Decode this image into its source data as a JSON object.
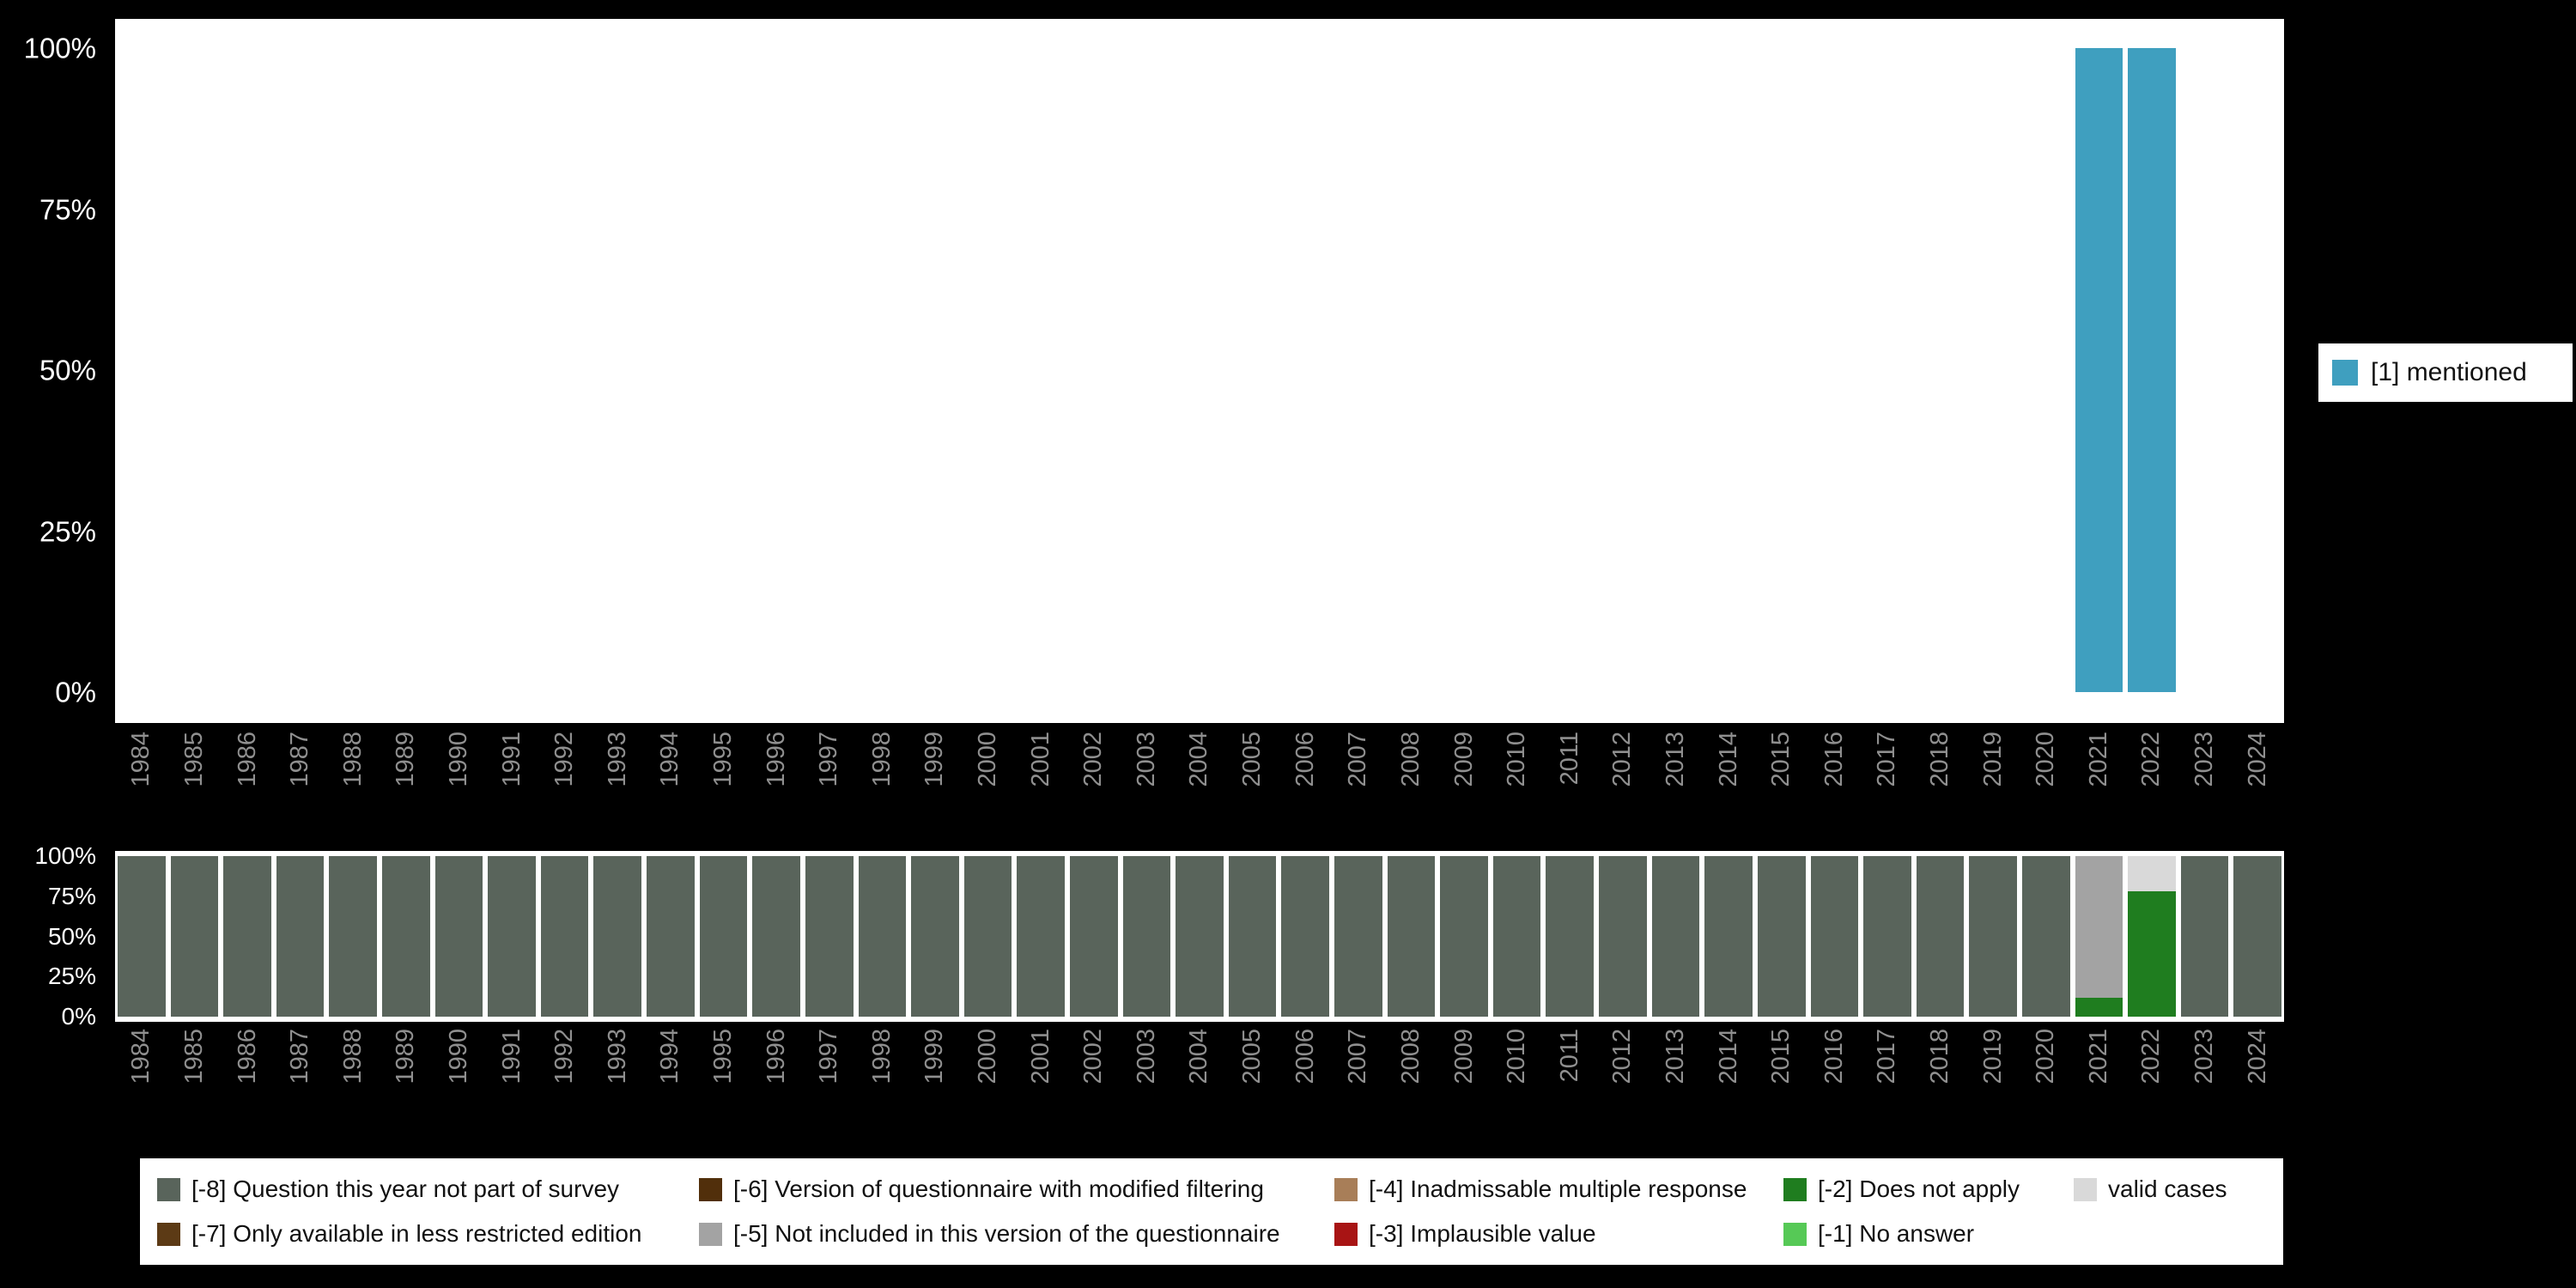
{
  "page": {
    "background": "#000000"
  },
  "chart_data": [
    {
      "id": "mentioned-percent-over-time",
      "type": "bar",
      "stacked": true,
      "title": "",
      "xlabel": "",
      "ylabel": "",
      "ylim": [
        0,
        100
      ],
      "grid": false,
      "legend_position": "right",
      "yticks_top_down": [
        "100%",
        "75%",
        "50%",
        "25%",
        "0%"
      ],
      "categories": [
        "1984",
        "1985",
        "1986",
        "1987",
        "1988",
        "1989",
        "1990",
        "1991",
        "1992",
        "1993",
        "1994",
        "1995",
        "1996",
        "1997",
        "1998",
        "1999",
        "2000",
        "2001",
        "2002",
        "2003",
        "2004",
        "2005",
        "2006",
        "2007",
        "2008",
        "2009",
        "2010",
        "2011",
        "2012",
        "2013",
        "2014",
        "2015",
        "2016",
        "2017",
        "2018",
        "2019",
        "2020",
        "2021",
        "2022",
        "2023",
        "2024"
      ],
      "series": [
        {
          "name": "[1] mentioned",
          "color": "#3f9fbf",
          "values": [
            0,
            0,
            0,
            0,
            0,
            0,
            0,
            0,
            0,
            0,
            0,
            0,
            0,
            0,
            0,
            0,
            0,
            0,
            0,
            0,
            0,
            0,
            0,
            0,
            0,
            0,
            0,
            0,
            0,
            0,
            0,
            0,
            0,
            0,
            0,
            0,
            0,
            100,
            100,
            0,
            0
          ]
        }
      ]
    },
    {
      "id": "missing-values-over-time",
      "type": "bar",
      "stacked": true,
      "title": "",
      "xlabel": "",
      "ylabel": "",
      "ylim": [
        0,
        100
      ],
      "grid": false,
      "legend_position": "bottom",
      "yticks_top_down": [
        "100%",
        "75%",
        "50%",
        "25%",
        "0%"
      ],
      "categories": [
        "1984",
        "1985",
        "1986",
        "1987",
        "1988",
        "1989",
        "1990",
        "1991",
        "1992",
        "1993",
        "1994",
        "1995",
        "1996",
        "1997",
        "1998",
        "1999",
        "2000",
        "2001",
        "2002",
        "2003",
        "2004",
        "2005",
        "2006",
        "2007",
        "2008",
        "2009",
        "2010",
        "2011",
        "2012",
        "2013",
        "2014",
        "2015",
        "2016",
        "2017",
        "2018",
        "2019",
        "2020",
        "2021",
        "2022",
        "2023",
        "2024"
      ],
      "series": [
        {
          "name": "[-2] Does not apply",
          "color": "#1f7d1f",
          "values": [
            0,
            0,
            0,
            0,
            0,
            0,
            0,
            0,
            0,
            0,
            0,
            0,
            0,
            0,
            0,
            0,
            0,
            0,
            0,
            0,
            0,
            0,
            0,
            0,
            0,
            0,
            0,
            0,
            0,
            0,
            0,
            0,
            0,
            0,
            0,
            0,
            0,
            12,
            78,
            0,
            0
          ]
        },
        {
          "name": "[-5] Not included in this version of the questionnaire",
          "color": "#a3a3a3",
          "values": [
            0,
            0,
            0,
            0,
            0,
            0,
            0,
            0,
            0,
            0,
            0,
            0,
            0,
            0,
            0,
            0,
            0,
            0,
            0,
            0,
            0,
            0,
            0,
            0,
            0,
            0,
            0,
            0,
            0,
            0,
            0,
            0,
            0,
            0,
            0,
            0,
            0,
            88,
            0,
            0,
            0
          ]
        },
        {
          "name": "valid cases",
          "color": "#d9d9d9",
          "values": [
            0,
            0,
            0,
            0,
            0,
            0,
            0,
            0,
            0,
            0,
            0,
            0,
            0,
            0,
            0,
            0,
            0,
            0,
            0,
            0,
            0,
            0,
            0,
            0,
            0,
            0,
            0,
            0,
            0,
            0,
            0,
            0,
            0,
            0,
            0,
            0,
            0,
            0,
            22,
            0,
            0
          ]
        },
        {
          "name": "[-8] Question this year not part of survey",
          "color": "#59645b",
          "values": [
            100,
            100,
            100,
            100,
            100,
            100,
            100,
            100,
            100,
            100,
            100,
            100,
            100,
            100,
            100,
            100,
            100,
            100,
            100,
            100,
            100,
            100,
            100,
            100,
            100,
            100,
            100,
            100,
            100,
            100,
            100,
            100,
            100,
            100,
            100,
            100,
            100,
            0,
            0,
            100,
            100
          ]
        }
      ]
    }
  ],
  "legend_right": {
    "items": [
      {
        "label": "[1] mentioned",
        "color": "#3f9fbf"
      }
    ]
  },
  "legend_bottom": {
    "columns": [
      {
        "items": [
          {
            "label": "[-8] Question this year not part of survey",
            "color": "#59645b"
          },
          {
            "label": "[-7] Only available in less restricted edition",
            "color": "#5c3a15"
          }
        ]
      },
      {
        "items": [
          {
            "label": "[-6] Version of questionnaire with modified filtering",
            "color": "#512f0b"
          },
          {
            "label": "[-5] Not included in this version of the questionnaire",
            "color": "#a3a3a3"
          }
        ]
      },
      {
        "items": [
          {
            "label": "[-4] Inadmissable multiple response",
            "color": "#a87e58"
          },
          {
            "label": "[-3] Implausible value",
            "color": "#a81414"
          }
        ]
      },
      {
        "items": [
          {
            "label": "[-2] Does not apply",
            "color": "#1f7d1f"
          },
          {
            "label": "[-1] No answer",
            "color": "#56c956"
          }
        ]
      },
      {
        "items": [
          {
            "label": "valid cases",
            "color": "#d9d9d9"
          }
        ]
      }
    ]
  }
}
